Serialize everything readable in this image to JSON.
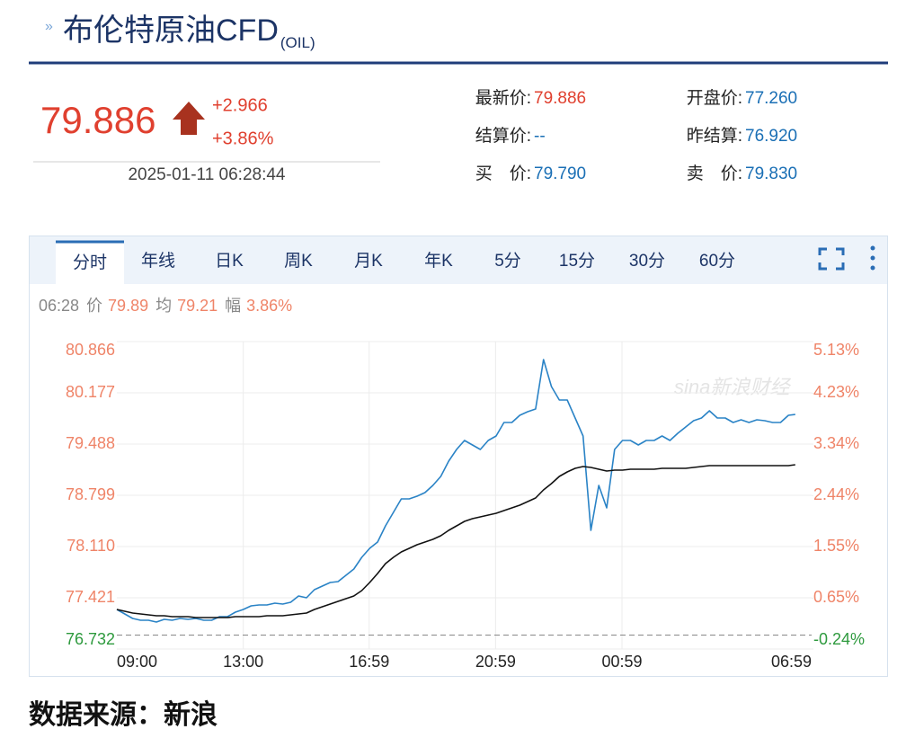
{
  "header": {
    "title": "布伦特原油CFD",
    "code": "(OIL)"
  },
  "quote": {
    "price": "79.886",
    "change": "+2.966",
    "change_pct": "+3.86%",
    "time": "2025-01-11 06:28:44",
    "fields": [
      {
        "label": "最新价:",
        "value": "79.886",
        "color": "#e0402f"
      },
      {
        "label": "开盘价:",
        "value": "77.260",
        "color": "#1a6fb5"
      },
      {
        "label": "结算价:",
        "value": "--",
        "color": "#1a6fb5"
      },
      {
        "label": "昨结算:",
        "value": "76.920",
        "color": "#1a6fb5"
      },
      {
        "label": "买　价:",
        "value": "79.790",
        "color": "#1a6fb5"
      },
      {
        "label": "卖　价:",
        "value": "79.830",
        "color": "#1a6fb5"
      }
    ]
  },
  "tabs": {
    "items": [
      "分时",
      "年线",
      "日K",
      "周K",
      "月K",
      "年K",
      "5分",
      "15分",
      "30分",
      "60分"
    ],
    "active": 0
  },
  "info": {
    "time": "06:28",
    "price": "79.89",
    "avg": "79.21",
    "amp_label": "幅",
    "amp": "3.86%"
  },
  "watermark": "sina新浪财经",
  "chart_data": {
    "type": "line",
    "x": [
      "09:00",
      "09:15",
      "09:30",
      "09:45",
      "10:00",
      "10:15",
      "10:30",
      "10:45",
      "11:00",
      "11:15",
      "11:30",
      "11:45",
      "12:00",
      "12:15",
      "12:30",
      "12:45",
      "13:00",
      "13:15",
      "13:30",
      "13:45",
      "14:00",
      "14:15",
      "14:30",
      "14:45",
      "15:00",
      "15:15",
      "15:30",
      "15:45",
      "16:00",
      "16:15",
      "16:30",
      "16:45",
      "17:00",
      "17:15",
      "17:30",
      "17:45",
      "18:00",
      "18:15",
      "18:30",
      "18:45",
      "19:00",
      "19:15",
      "19:30",
      "19:45",
      "20:00",
      "20:15",
      "20:30",
      "20:45",
      "21:00",
      "21:15",
      "21:30",
      "21:45",
      "22:00",
      "22:15",
      "22:30",
      "22:45",
      "23:00",
      "23:15",
      "23:30",
      "23:45",
      "00:00",
      "00:15",
      "00:30",
      "00:45",
      "01:00",
      "01:15",
      "01:30",
      "01:45",
      "02:00",
      "02:15",
      "02:30",
      "02:45",
      "03:00",
      "03:15",
      "03:30",
      "03:45",
      "04:00",
      "04:15",
      "04:30",
      "04:45",
      "05:00",
      "05:15",
      "05:30",
      "05:45",
      "06:00",
      "06:15",
      "06:28"
    ],
    "series": [
      {
        "name": "价",
        "color": "#2a83c6",
        "values": [
          77.264,
          77.203,
          77.143,
          77.119,
          77.119,
          77.095,
          77.131,
          77.119,
          77.143,
          77.131,
          77.143,
          77.119,
          77.119,
          77.167,
          77.167,
          77.228,
          77.264,
          77.312,
          77.324,
          77.324,
          77.348,
          77.336,
          77.36,
          77.445,
          77.421,
          77.53,
          77.578,
          77.626,
          77.639,
          77.723,
          77.808,
          77.965,
          78.086,
          78.17,
          78.388,
          78.569,
          78.751,
          78.751,
          78.787,
          78.835,
          78.932,
          79.053,
          79.258,
          79.415,
          79.536,
          79.476,
          79.415,
          79.536,
          79.597,
          79.778,
          79.778,
          79.875,
          79.923,
          79.959,
          80.624,
          80.262,
          80.08,
          80.08,
          79.839,
          79.597,
          78.328,
          78.932,
          78.63,
          79.415,
          79.536,
          79.536,
          79.476,
          79.536,
          79.536,
          79.597,
          79.536,
          79.633,
          79.718,
          79.802,
          79.839,
          79.935,
          79.839,
          79.839,
          79.778,
          79.814,
          79.778,
          79.814,
          79.802,
          79.778,
          79.778,
          79.875,
          79.886
        ]
      },
      {
        "name": "均",
        "color": "#111111",
        "values": [
          77.264,
          77.24,
          77.215,
          77.203,
          77.191,
          77.179,
          77.179,
          77.167,
          77.167,
          77.167,
          77.155,
          77.155,
          77.155,
          77.155,
          77.155,
          77.167,
          77.167,
          77.167,
          77.167,
          77.179,
          77.179,
          77.179,
          77.191,
          77.203,
          77.215,
          77.264,
          77.3,
          77.336,
          77.373,
          77.409,
          77.445,
          77.518,
          77.626,
          77.747,
          77.88,
          77.965,
          78.037,
          78.086,
          78.134,
          78.17,
          78.207,
          78.255,
          78.328,
          78.388,
          78.448,
          78.485,
          78.509,
          78.533,
          78.557,
          78.593,
          78.63,
          78.666,
          78.714,
          78.763,
          78.871,
          78.956,
          79.053,
          79.113,
          79.162,
          79.186,
          79.174,
          79.15,
          79.125,
          79.137,
          79.137,
          79.15,
          79.15,
          79.15,
          79.15,
          79.162,
          79.162,
          79.162,
          79.162,
          79.174,
          79.186,
          79.198,
          79.198,
          79.198,
          79.198,
          79.198,
          79.198,
          79.198,
          79.198,
          79.198,
          79.198,
          79.198,
          79.21
        ]
      }
    ],
    "xlim": [
      "09:00",
      "06:59"
    ],
    "xticks": [
      "09:00",
      "13:00",
      "16:59",
      "20:59",
      "00:59",
      "06:59"
    ],
    "ylim": [
      76.732,
      80.866
    ],
    "yticks": [
      80.866,
      80.177,
      79.488,
      78.799,
      {
        "value": 78.11,
        "label": "78.110"
      },
      77.421,
      76.732
    ],
    "y2lim": [
      -0.24,
      5.13
    ],
    "y2ticks": [
      {
        "value": 5.13,
        "label": "5.13%"
      },
      {
        "value": 4.23,
        "label": "4.23%"
      },
      {
        "value": 3.34,
        "label": "3.34%"
      },
      {
        "value": 2.44,
        "label": "2.44%"
      },
      {
        "value": 1.55,
        "label": "1.55%"
      },
      {
        "value": 0.65,
        "label": "0.65%"
      },
      {
        "value": -0.24,
        "label": "-0.24%"
      }
    ],
    "baseline": 76.92,
    "grid": true,
    "up_color": "#ef8468",
    "down_color": "#2e9a3e"
  },
  "footer": "数据来源：新浪"
}
